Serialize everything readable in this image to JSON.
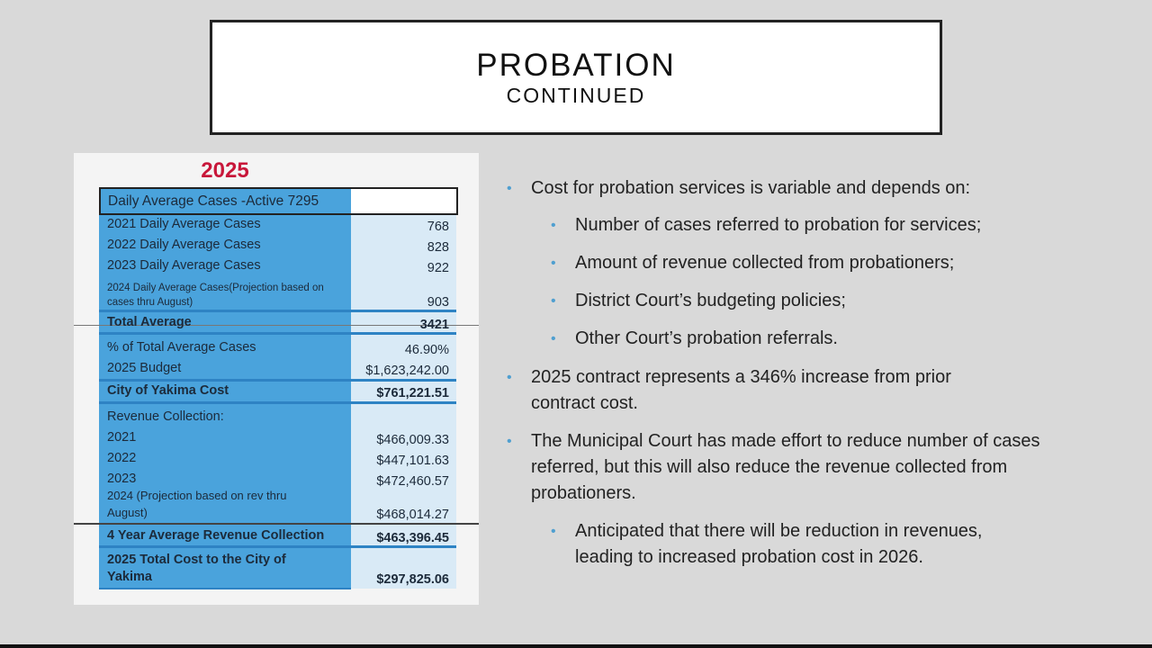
{
  "title": {
    "main": "PROBATION",
    "sub": "CONTINUED"
  },
  "table": {
    "year": "2025",
    "header": "Daily Average Cases -Active 7295",
    "rows": [
      {
        "label": "2021 Daily Average Cases",
        "value": "768"
      },
      {
        "label": "2022 Daily Average Cases",
        "value": "828"
      },
      {
        "label": "2023 Daily Average Cases",
        "value": "922"
      },
      {
        "label": "2024 Daily Average Cases(Projection based on cases thru August)",
        "value": "903"
      },
      {
        "label": "Total Average",
        "value": "3421"
      },
      {
        "label": "% of Total Average Cases",
        "value": "46.90%"
      },
      {
        "label": "2025 Budget",
        "value": "$1,623,242.00"
      },
      {
        "label": "City of Yakima Cost",
        "value": "$761,221.51"
      },
      {
        "label": "Revenue Collection:",
        "value": ""
      },
      {
        "label": "2021",
        "value": "$466,009.33"
      },
      {
        "label": "2022",
        "value": "$447,101.63"
      },
      {
        "label": "2023",
        "value": "$472,460.57"
      },
      {
        "label": "2024 (Projection based on rev thru August)",
        "value": "$468,014.27"
      },
      {
        "label": "4 Year Average Revenue Collection",
        "value": "$463,396.45"
      },
      {
        "label": "2025 Total Cost to the City of Yakima",
        "value": "$297,825.06"
      }
    ]
  },
  "bullets": [
    "Cost for probation services is variable and depends on:",
    "Number of cases referred to probation for services;",
    "Amount of revenue collected from probationers;",
    "District Court’s budgeting policies;",
    "Other Court’s probation referrals.",
    "2025 contract represents a 346% increase from prior contract cost.",
    "The Municipal Court has made effort to reduce number of cases referred, but this will also reduce the revenue collected from probationers.",
    "Anticipated that there will be reduction in revenues, leading to increased probation cost in 2026."
  ],
  "colors": {
    "accent": "#4f9fd0",
    "year": "#c8173a",
    "table_blue": "#4aa3dc"
  }
}
